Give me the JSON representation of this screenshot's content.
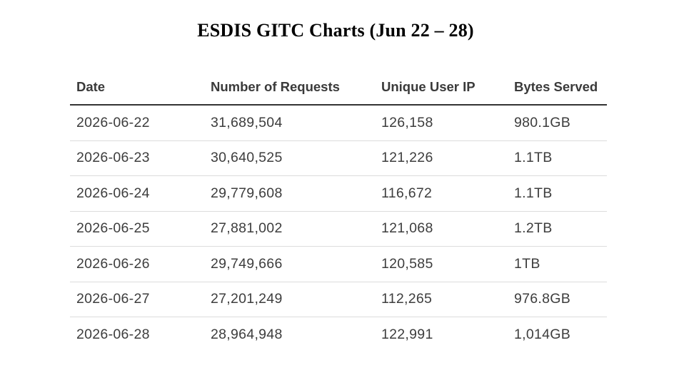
{
  "title": "ESDIS GITC Charts (Jun 22 – 28)",
  "table": {
    "headers": [
      "Date",
      "Number of Requests",
      "Unique User IP",
      "Bytes Served"
    ],
    "rows": [
      [
        "2026-06-22",
        "31,689,504",
        "126,158",
        "980.1GB"
      ],
      [
        "2026-06-23",
        "30,640,525",
        "121,226",
        "1.1TB"
      ],
      [
        "2026-06-24",
        "29,779,608",
        "116,672",
        "1.1TB"
      ],
      [
        "2026-06-25",
        "27,881,002",
        "121,068",
        "1.2TB"
      ],
      [
        "2026-06-26",
        "29,749,666",
        "120,585",
        "1TB"
      ],
      [
        "2026-06-27",
        "27,201,249",
        "112,265",
        "976.8GB"
      ],
      [
        "2026-06-28",
        "28,964,948",
        "122,991",
        "1,014GB"
      ]
    ]
  }
}
